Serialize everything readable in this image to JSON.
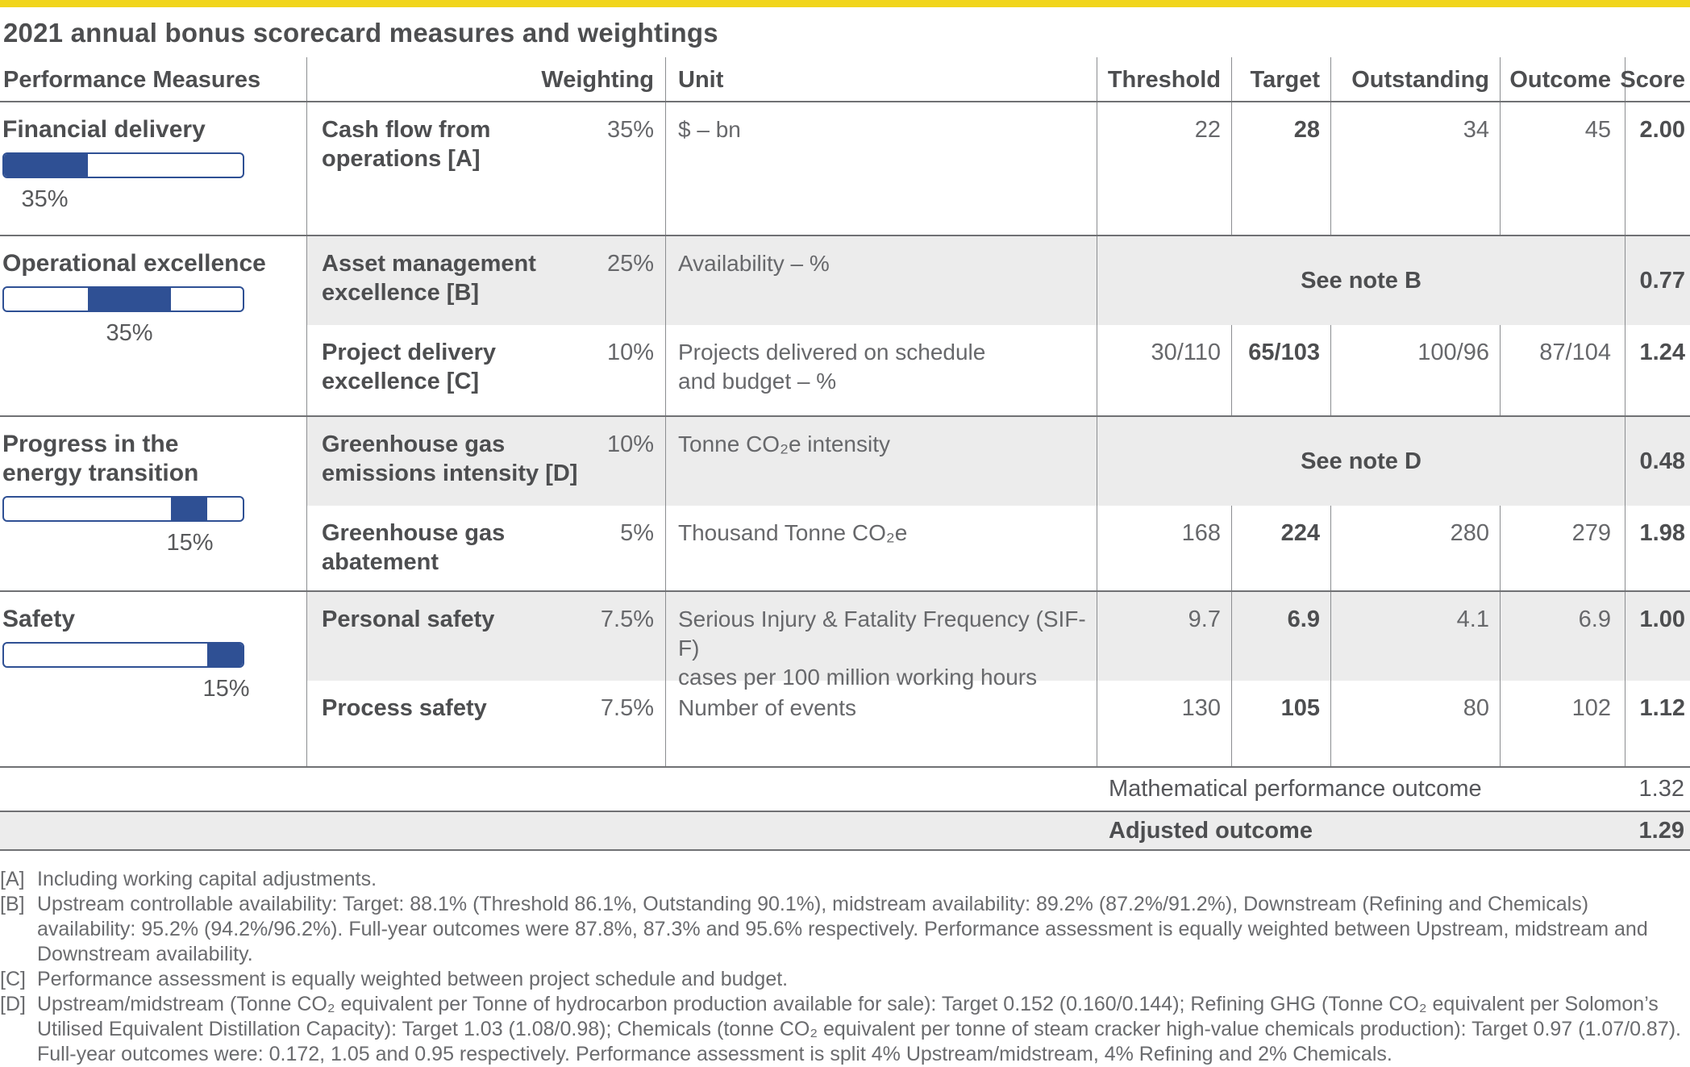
{
  "title": "2021 annual bonus scorecard measures and weightings",
  "colors": {
    "accent_yellow": "#f1d51b",
    "bar_blue": "#2f5094",
    "row_shade": "#ececec",
    "text_dark": "#4d4e50",
    "text_mid": "#67686b"
  },
  "header": {
    "performance_measures": "Performance Measures",
    "weighting": "Weighting",
    "unit": "Unit",
    "threshold": "Threshold",
    "target": "Target",
    "outstanding": "Outstanding",
    "outcome": "Outcome",
    "score": "Score"
  },
  "groups": [
    {
      "name": "Financial delivery",
      "weight_label": "35%",
      "bar": {
        "start": 0,
        "end": 35
      },
      "rows": [
        {
          "measure": "Cash flow from\noperations [A]",
          "weighting": "35%",
          "unit": "$ – bn",
          "threshold": "22",
          "target": "28",
          "outstanding": "34",
          "outcome": "45",
          "score": "2.00"
        }
      ]
    },
    {
      "name": "Operational excellence",
      "weight_label": "35%",
      "bar": {
        "start": 35,
        "end": 70
      },
      "rows": [
        {
          "measure": "Asset management\nexcellence [B]",
          "weighting": "25%",
          "unit": "Availability – %",
          "note": "See note B",
          "score": "0.77"
        },
        {
          "measure": "Project delivery\nexcellence [C]",
          "weighting": "10%",
          "unit": "Projects delivered on schedule\nand budget – %",
          "threshold": "30/110",
          "target": "65/103",
          "outstanding": "100/96",
          "outcome": "87/104",
          "score": "1.24"
        }
      ]
    },
    {
      "name": "Progress in the\nenergy transition",
      "weight_label": "15%",
      "bar": {
        "start": 70,
        "end": 85
      },
      "rows": [
        {
          "measure": "Greenhouse gas\nemissions intensity [D]",
          "weighting": "10%",
          "unit": "Tonne CO₂e intensity",
          "note": "See note D",
          "score": "0.48"
        },
        {
          "measure": "Greenhouse gas\nabatement",
          "weighting": "5%",
          "unit": "Thousand Tonne CO₂e",
          "threshold": "168",
          "target": "224",
          "outstanding": "280",
          "outcome": "279",
          "score": "1.98"
        }
      ]
    },
    {
      "name": "Safety",
      "weight_label": "15%",
      "bar": {
        "start": 85,
        "end": 100
      },
      "rows": [
        {
          "measure": "Personal safety",
          "weighting": "7.5%",
          "unit": "Serious Injury & Fatality Frequency (SIF-F)\ncases per 100 million working hours",
          "threshold": "9.7",
          "target": "6.9",
          "outstanding": "4.1",
          "outcome": "6.9",
          "score": "1.00"
        },
        {
          "measure": "Process safety",
          "weighting": "7.5%",
          "unit": "Number of events",
          "threshold": "130",
          "target": "105",
          "outstanding": "80",
          "outcome": "102",
          "score": "1.12"
        }
      ]
    }
  ],
  "summary": [
    {
      "label": "Mathematical performance outcome",
      "value": "1.32"
    },
    {
      "label": "Adjusted outcome",
      "value": "1.29"
    }
  ],
  "footnotes": [
    {
      "marker": "[A]",
      "text": "Including working capital adjustments."
    },
    {
      "marker": "[B]",
      "text": "Upstream controllable availability: Target: 88.1% (Threshold 86.1%, Outstanding 90.1%), midstream availability: 89.2% (87.2%/91.2%), Downstream (Refining and Chemicals) availability: 95.2% (94.2%/96.2%). Full-year outcomes were 87.8%, 87.3% and 95.6% respectively. Performance assessment is equally weighted between Upstream, midstream and Downstream availability."
    },
    {
      "marker": "[C]",
      "text": "Performance assessment is equally weighted between project schedule and budget."
    },
    {
      "marker": "[D]",
      "text": "Upstream/midstream (Tonne CO₂ equivalent per Tonne of hydrocarbon production available for sale): Target 0.152 (0.160/0.144); Refining GHG (Tonne CO₂ equivalent per Solomon’s Utilised Equivalent Distillation Capacity): Target 1.03 (1.08/0.98); Chemicals (tonne CO₂ equivalent per tonne of steam cracker high-value chemicals production): Target 0.97 (1.07/0.87). Full-year outcomes were: 0.172, 1.05 and 0.95 respectively. Performance assessment is split 4% Upstream/midstream, 4% Refining and 2% Chemicals."
    }
  ]
}
